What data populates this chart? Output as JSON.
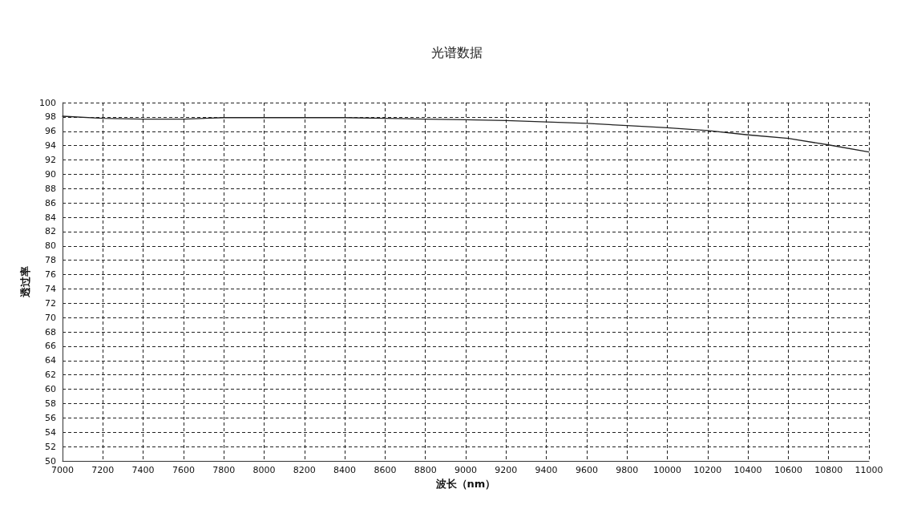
{
  "chart_data": {
    "type": "line",
    "title": "光谱数据",
    "xlabel": "波长（nm）",
    "ylabel": "透过率",
    "x": [
      7000,
      7200,
      7400,
      7600,
      7800,
      8000,
      8200,
      8400,
      8600,
      8800,
      9000,
      9200,
      9400,
      9600,
      9800,
      10000,
      10200,
      10400,
      10600,
      10800,
      11000
    ],
    "series": [
      {
        "color": "#222222",
        "values": [
          98.1,
          97.8,
          97.7,
          97.7,
          97.9,
          97.9,
          97.9,
          97.9,
          97.8,
          97.7,
          97.6,
          97.5,
          97.3,
          97.1,
          96.8,
          96.5,
          96.1,
          95.5,
          95.0,
          94.1,
          93.1
        ]
      }
    ],
    "xlim": [
      7000,
      11000
    ],
    "xticks": [
      7000,
      7200,
      7400,
      7600,
      7800,
      8000,
      8200,
      8400,
      8600,
      8800,
      9000,
      9200,
      9400,
      9600,
      9800,
      10000,
      10200,
      10400,
      10600,
      10800,
      11000
    ],
    "ylim": [
      50,
      100
    ],
    "yticks": [
      50,
      52,
      54,
      56,
      58,
      60,
      62,
      64,
      66,
      68,
      70,
      72,
      74,
      76,
      78,
      80,
      82,
      84,
      86,
      88,
      90,
      92,
      94,
      96,
      98,
      100
    ],
    "grid": true,
    "line_style": "solid",
    "marker": "none"
  }
}
